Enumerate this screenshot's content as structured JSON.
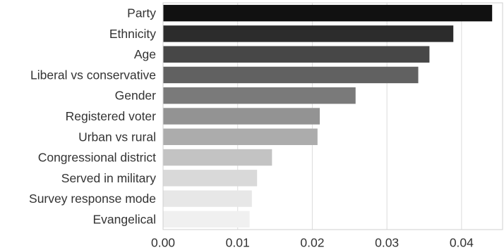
{
  "chart_data": {
    "type": "bar",
    "orientation": "horizontal",
    "categories": [
      "Party",
      "Ethnicity",
      "Age",
      "Liberal vs conservative",
      "Gender",
      "Registered voter",
      "Urban vs rural",
      "Congressional district",
      "Served in military",
      "Survey response mode",
      "Evangelical"
    ],
    "values": [
      0.0441,
      0.0389,
      0.0357,
      0.0342,
      0.0258,
      0.021,
      0.0207,
      0.0146,
      0.0126,
      0.0119,
      0.0116
    ],
    "bar_colors": [
      "#111111",
      "#2c2c2c",
      "#474747",
      "#616161",
      "#7a7a7a",
      "#939393",
      "#acacac",
      "#c3c3c3",
      "#d9d9d9",
      "#e7e7e7",
      "#f0f0f0"
    ],
    "xlim": [
      0,
      0.0455
    ],
    "xticks": [
      0.0,
      0.01,
      0.02,
      0.03,
      0.04
    ],
    "xtick_labels": [
      "0.00",
      "0.01",
      "0.02",
      "0.03",
      "0.04"
    ],
    "grid": "vertical",
    "title": "",
    "xlabel": "",
    "ylabel": ""
  }
}
